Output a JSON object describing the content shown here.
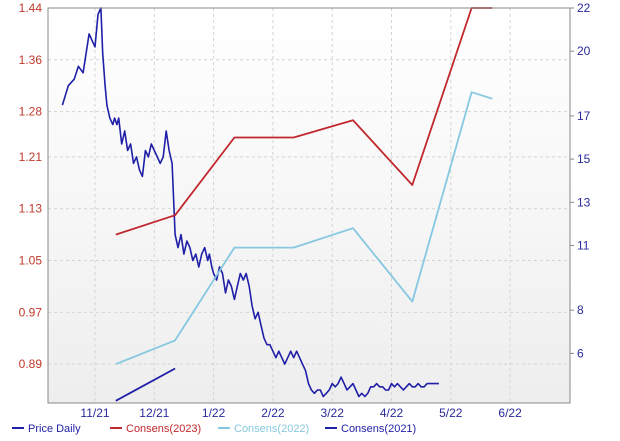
{
  "chart_data": {
    "type": "line",
    "x_ticks": [
      "11/21",
      "12/21",
      "1/22",
      "2/22",
      "3/22",
      "4/22",
      "5/22",
      "6/22"
    ],
    "left_axis": {
      "ylim": [
        0.83,
        1.44
      ],
      "ticks": [
        "1.44",
        "1.36",
        "1.28",
        "1.21",
        "1.13",
        "1.05",
        "0.97",
        "0.89"
      ],
      "tick_values": [
        1.44,
        1.36,
        1.28,
        1.21,
        1.13,
        1.05,
        0.97,
        0.89
      ],
      "color": "#c0392b"
    },
    "right_axis": {
      "ylim": [
        3.7,
        22
      ],
      "ticks": [
        "22",
        "20",
        "17",
        "15",
        "13",
        "11",
        "8",
        "6"
      ],
      "tick_values": [
        22,
        20,
        17,
        15,
        13,
        11,
        8,
        6
      ],
      "color": "#2a2a9c"
    },
    "grid": true,
    "legend_position": "bottom",
    "series": [
      {
        "name": "Price Daily",
        "axis": "left",
        "color": "#1f1fa8",
        "x": [
          -0.55,
          -0.45,
          -0.35,
          -0.28,
          -0.2,
          -0.1,
          0.0,
          0.05,
          0.1,
          0.13,
          0.17,
          0.2,
          0.25,
          0.3,
          0.33,
          0.37,
          0.4,
          0.45,
          0.5,
          0.55,
          0.6,
          0.65,
          0.7,
          0.75,
          0.8,
          0.85,
          0.9,
          0.95,
          1.0,
          1.05,
          1.1,
          1.15,
          1.2,
          1.25,
          1.3,
          1.35,
          1.4,
          1.45,
          1.5,
          1.55,
          1.6,
          1.65,
          1.7,
          1.75,
          1.8,
          1.85,
          1.9,
          1.93,
          1.97,
          2.0,
          2.05,
          2.1,
          2.15,
          2.2,
          2.25,
          2.3,
          2.35,
          2.4,
          2.45,
          2.5,
          2.55,
          2.6,
          2.65,
          2.7,
          2.75,
          2.8,
          2.85,
          2.9,
          2.95,
          3.0,
          3.05,
          3.1,
          3.15,
          3.2,
          3.25,
          3.3,
          3.35,
          3.4,
          3.45,
          3.5,
          3.55,
          3.6,
          3.65,
          3.7,
          3.75,
          3.8,
          3.85,
          3.9,
          3.95,
          4.0,
          4.05,
          4.1,
          4.15,
          4.2,
          4.25,
          4.3,
          4.35,
          4.4,
          4.45,
          4.5,
          4.55,
          4.6,
          4.65,
          4.7,
          4.75,
          4.8,
          4.85,
          4.9,
          4.95,
          5.0,
          5.05,
          5.1,
          5.15,
          5.2,
          5.25,
          5.3,
          5.35,
          5.4,
          5.45,
          5.5,
          5.55,
          5.6,
          5.65,
          5.7,
          5.75,
          5.8
        ],
        "values": [
          1.29,
          1.32,
          1.33,
          1.35,
          1.34,
          1.4,
          1.38,
          1.43,
          1.44,
          1.37,
          1.32,
          1.29,
          1.27,
          1.26,
          1.27,
          1.26,
          1.27,
          1.23,
          1.25,
          1.22,
          1.23,
          1.2,
          1.21,
          1.19,
          1.18,
          1.22,
          1.21,
          1.23,
          1.22,
          1.21,
          1.2,
          1.21,
          1.25,
          1.22,
          1.2,
          1.09,
          1.07,
          1.09,
          1.06,
          1.08,
          1.07,
          1.05,
          1.06,
          1.04,
          1.06,
          1.07,
          1.05,
          1.06,
          1.04,
          1.03,
          1.02,
          1.04,
          1.03,
          1.0,
          1.02,
          1.01,
          0.99,
          1.01,
          1.03,
          1.02,
          1.03,
          1.01,
          0.98,
          0.96,
          0.97,
          0.95,
          0.93,
          0.92,
          0.92,
          0.91,
          0.9,
          0.91,
          0.9,
          0.89,
          0.9,
          0.91,
          0.9,
          0.91,
          0.9,
          0.89,
          0.88,
          0.86,
          0.85,
          0.845,
          0.85,
          0.85,
          0.84,
          0.845,
          0.85,
          0.86,
          0.855,
          0.86,
          0.87,
          0.86,
          0.85,
          0.855,
          0.86,
          0.85,
          0.84,
          0.845,
          0.84,
          0.845,
          0.855,
          0.855,
          0.86,
          0.855,
          0.855,
          0.85,
          0.85,
          0.86,
          0.855,
          0.86,
          0.855,
          0.85,
          0.855,
          0.86,
          0.855,
          0.855,
          0.86,
          0.855,
          0.855,
          0.86,
          0.86,
          0.86,
          0.86,
          0.86
        ]
      },
      {
        "name": "Consens(2023)",
        "axis": "right",
        "color": "#c0282d",
        "x": [
          0.35,
          1.35,
          2.35,
          3.35,
          4.35,
          5.35,
          6.35,
          6.7
        ],
        "values": [
          11.5,
          12.4,
          16,
          16,
          16.8,
          13.8,
          22,
          22
        ]
      },
      {
        "name": "Consens(2022)",
        "axis": "right",
        "color": "#86c8e0",
        "x": [
          0.35,
          1.35,
          2.35,
          3.35,
          4.35,
          5.35,
          6.35,
          6.7
        ],
        "values": [
          5.5,
          6.6,
          10.9,
          10.9,
          11.8,
          8.4,
          18.1,
          17.8
        ]
      },
      {
        "name": "Consens(2021)",
        "axis": "right",
        "color": "#1f1fa8",
        "x": [
          0.35,
          1.35
        ],
        "values": [
          3.8,
          5.3
        ]
      }
    ]
  }
}
